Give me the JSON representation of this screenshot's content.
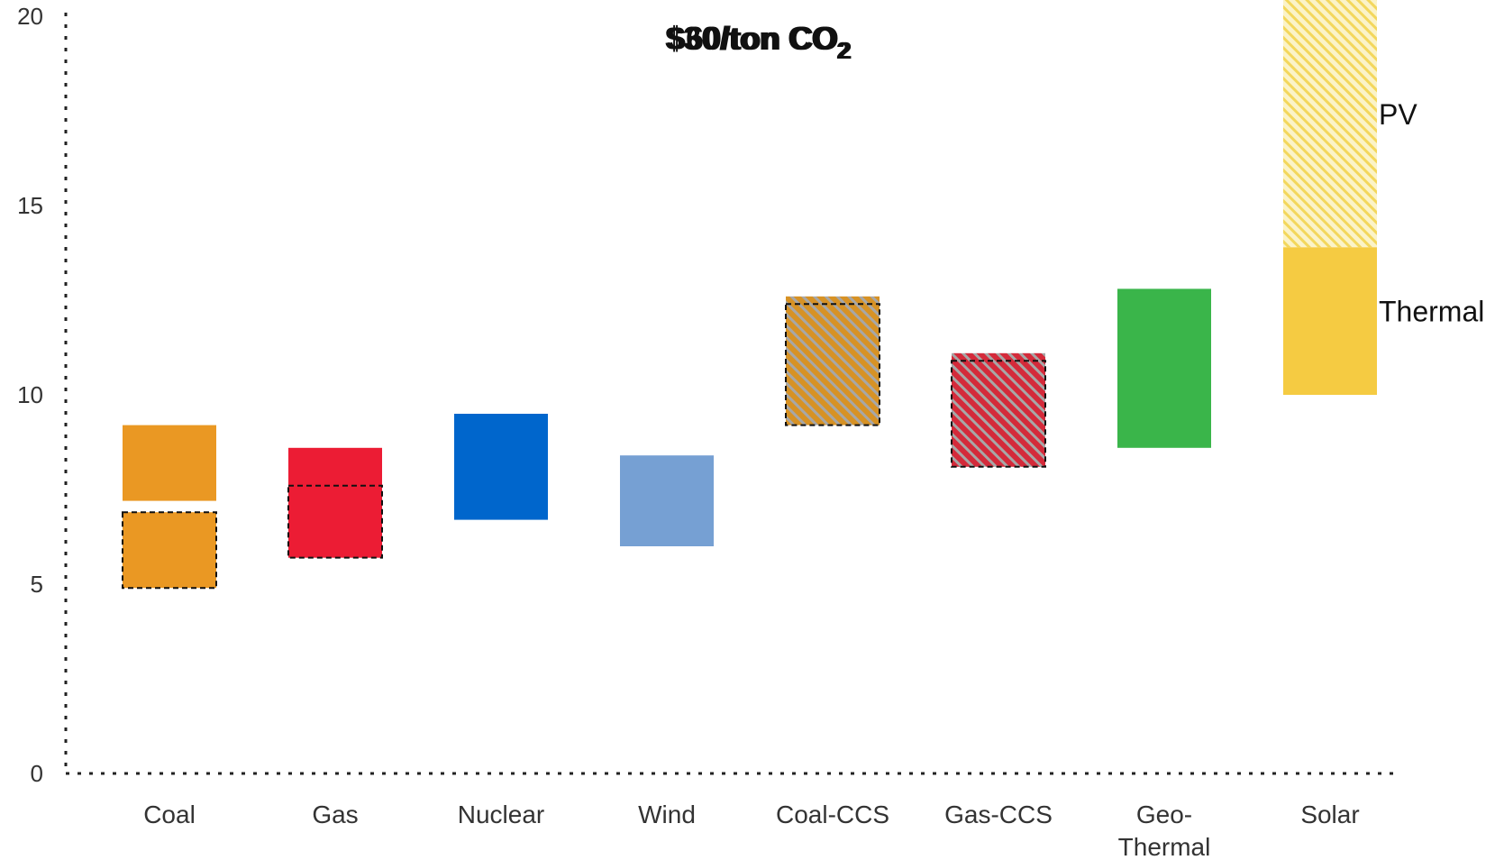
{
  "chart_data": {
    "type": "bar",
    "subtype": "floating-range",
    "title_overlap": [
      "$30/ton CO",
      "$60/ton CO"
    ],
    "title_subscript": "2",
    "categories": [
      "Coal",
      "Gas",
      "Nuclear",
      "Wind",
      "Coal-CCS",
      "Gas-CCS",
      "Geo-Thermal",
      "Solar"
    ],
    "category_label_lines": [
      [
        "Coal"
      ],
      [
        "Gas"
      ],
      [
        "Nuclear"
      ],
      [
        "Wind"
      ],
      [
        "Coal-CCS"
      ],
      [
        "Gas-CCS"
      ],
      [
        "Geo-",
        "Thermal"
      ],
      [
        "Solar"
      ]
    ],
    "ylim": [
      0,
      20
    ],
    "yticks": [
      0,
      5,
      10,
      15,
      20
    ],
    "ytick_labels": [
      "0",
      "5",
      "10",
      "15",
      "20"
    ],
    "grid": false,
    "bars": [
      {
        "category": "Coal",
        "low": 7.2,
        "high": 9.2,
        "color": "#ea9823",
        "pattern": "solid"
      },
      {
        "category": "Coal",
        "low": 4.9,
        "high": 6.9,
        "color": "#ea9823",
        "pattern": "solid",
        "border": "dashed"
      },
      {
        "category": "Gas",
        "low": 5.7,
        "high": 8.6,
        "color": "#ec1c34",
        "pattern": "solid"
      },
      {
        "category": "Gas",
        "low": 5.7,
        "high": 7.6,
        "color": "#ec1c34",
        "pattern": "solid",
        "border": "dashed"
      },
      {
        "category": "Nuclear",
        "low": 6.7,
        "high": 9.5,
        "color": "#0066cc",
        "pattern": "solid"
      },
      {
        "category": "Wind",
        "low": 6.0,
        "high": 8.4,
        "color": "#76a0d3",
        "pattern": "solid"
      },
      {
        "category": "Coal-CCS",
        "low": 9.2,
        "high": 12.6,
        "color": "#d79225",
        "pattern": "hatch"
      },
      {
        "category": "Coal-CCS",
        "low": 9.2,
        "high": 12.4,
        "color": "#d79225",
        "pattern": "none",
        "border": "dashed"
      },
      {
        "category": "Gas-CCS",
        "low": 8.1,
        "high": 11.1,
        "color": "#d42a3a",
        "pattern": "hatch"
      },
      {
        "category": "Gas-CCS",
        "low": 8.1,
        "high": 10.9,
        "color": "#d42a3a",
        "pattern": "none",
        "border": "dashed"
      },
      {
        "category": "Geo-Thermal",
        "low": 8.6,
        "high": 12.8,
        "color": "#3ab54a",
        "pattern": "solid"
      },
      {
        "category": "Solar",
        "low": 10.0,
        "high": 13.9,
        "color": "#f5cb42",
        "pattern": "solid"
      },
      {
        "category": "Solar",
        "low": 13.9,
        "high": 20.5,
        "color": "#f5e06a",
        "pattern": "light-hatch"
      }
    ],
    "annotations": [
      {
        "text": "PV",
        "y": 17.4
      },
      {
        "text": "Thermal",
        "y": 12.2
      }
    ]
  }
}
